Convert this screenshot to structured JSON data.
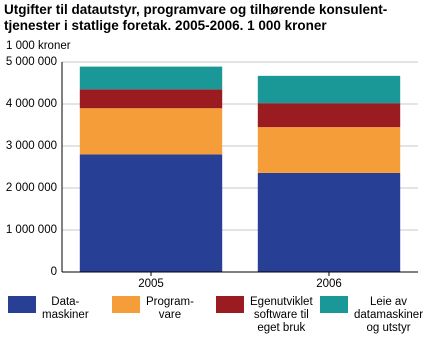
{
  "chart_data": {
    "type": "stacked-bar",
    "title": "Utgifter til datautstyr, programvare og tilhørende konsulent-\ntjenester i statlige foretak. 2005-2006. 1 000 kroner",
    "y_label": "1 000 kroner",
    "categories": [
      "2005",
      "2006"
    ],
    "series": [
      {
        "name": "Data-\nmaskiner",
        "color": "#283f96",
        "values": [
          2800000,
          2360000
        ]
      },
      {
        "name": "Program-\nvare",
        "color": "#f59d38",
        "values": [
          1100000,
          1090000
        ]
      },
      {
        "name": "Egenutviklet\nsoftware til\neget bruk",
        "color": "#9b1c20",
        "values": [
          450000,
          570000
        ]
      },
      {
        "name": "Leie av\ndatamaskiner\nog utstyr",
        "color": "#1a9898",
        "values": [
          540000,
          650000
        ]
      }
    ],
    "ylim": [
      0,
      5000000
    ],
    "yticks": [
      0,
      {
        "value": 1000000,
        "label": "1 000 000"
      },
      {
        "value": 2000000,
        "label": "2 000 000"
      },
      {
        "value": 3000000,
        "label": "3 000 000"
      },
      {
        "value": 4000000,
        "label": "4 000 000"
      },
      {
        "value": 5000000,
        "label": "5 000 000"
      }
    ],
    "grid": true
  }
}
